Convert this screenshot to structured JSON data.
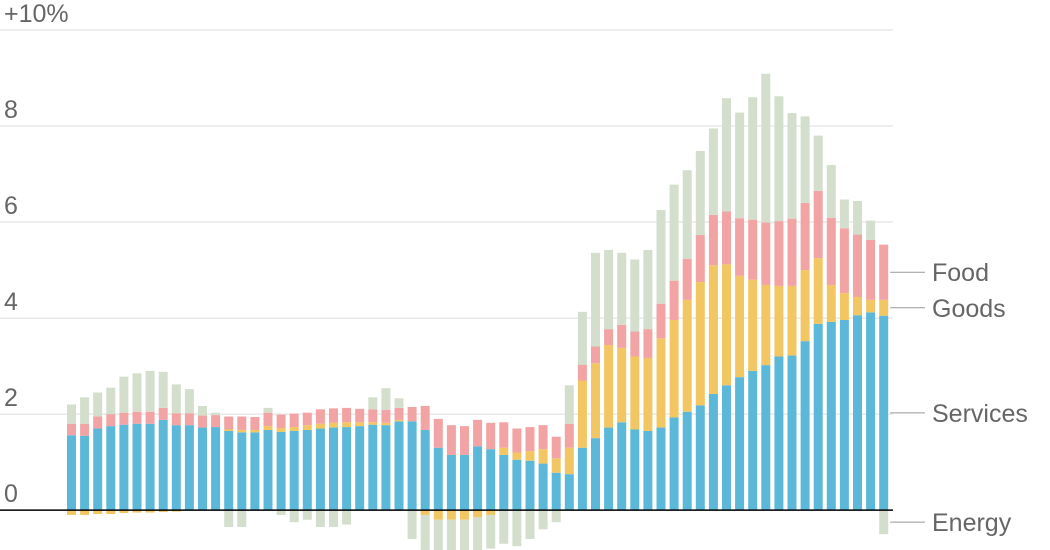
{
  "chart_data": {
    "type": "stacked_bar",
    "categories": [
      null,
      null,
      null,
      null,
      null,
      null,
      null,
      null,
      null,
      null,
      null,
      null,
      null,
      null,
      null,
      null,
      null,
      null,
      null,
      null,
      null,
      null,
      null,
      null,
      null,
      null,
      null,
      null,
      null,
      null,
      null,
      null,
      null,
      null,
      null,
      null,
      null,
      null,
      null,
      null,
      null,
      null,
      null,
      null,
      null,
      null,
      null,
      null,
      null,
      null,
      null,
      null,
      null,
      null,
      null,
      null,
      null,
      null,
      null,
      null,
      null,
      null,
      null
    ],
    "series": [
      {
        "name": "Services",
        "color": "#5bb8d9",
        "values": [
          1.56,
          1.55,
          1.7,
          1.75,
          1.78,
          1.8,
          1.8,
          1.88,
          1.77,
          1.77,
          1.72,
          1.73,
          1.65,
          1.62,
          1.62,
          1.67,
          1.63,
          1.65,
          1.67,
          1.7,
          1.72,
          1.73,
          1.75,
          1.78,
          1.77,
          1.85,
          1.85,
          1.67,
          1.3,
          1.15,
          1.15,
          1.33,
          1.27,
          1.15,
          1.05,
          1.03,
          0.97,
          0.78,
          0.75,
          1.3,
          1.5,
          1.72,
          1.83,
          1.68,
          1.65,
          1.72,
          1.93,
          2.05,
          2.18,
          2.42,
          2.6,
          2.77,
          2.9,
          3.02,
          3.2,
          3.22,
          3.52,
          3.88,
          3.92,
          3.96,
          4.06,
          4.12,
          4.05
        ]
      },
      {
        "name": "Goods",
        "color": "#f2c763",
        "values": [
          -0.1,
          -0.1,
          -0.08,
          -0.08,
          -0.06,
          -0.05,
          -0.05,
          -0.04,
          -0.03,
          0,
          0,
          0,
          0.03,
          0.05,
          0.05,
          0.08,
          0.08,
          0.08,
          0.1,
          0.1,
          0.1,
          0.1,
          0.08,
          0.05,
          0.05,
          0.03,
          0,
          -0.1,
          -0.2,
          -0.2,
          -0.2,
          -0.15,
          -0.1,
          0.15,
          0.15,
          0.2,
          0.3,
          0.3,
          0.55,
          1.4,
          1.56,
          1.72,
          1.55,
          1.52,
          1.52,
          1.86,
          2.03,
          2.33,
          2.57,
          2.68,
          2.52,
          2.11,
          1.9,
          1.67,
          1.47,
          1.45,
          1.48,
          1.37,
          0.77,
          0.56,
          0.38,
          0.26,
          0.33
        ]
      },
      {
        "name": "Food",
        "color": "#f2a3a3",
        "values": [
          0.24,
          0.25,
          0.25,
          0.25,
          0.25,
          0.25,
          0.25,
          0.25,
          0.25,
          0.25,
          0.25,
          0.25,
          0.27,
          0.28,
          0.27,
          0.28,
          0.28,
          0.28,
          0.26,
          0.3,
          0.3,
          0.3,
          0.28,
          0.27,
          0.27,
          0.25,
          0.3,
          0.5,
          0.6,
          0.62,
          0.6,
          0.55,
          0.55,
          0.53,
          0.5,
          0.5,
          0.5,
          0.45,
          0.5,
          0.33,
          0.35,
          0.33,
          0.48,
          0.52,
          0.6,
          0.72,
          0.82,
          0.85,
          0.98,
          1.05,
          1.1,
          1.2,
          1.25,
          1.3,
          1.35,
          1.4,
          1.4,
          1.4,
          1.4,
          1.35,
          1.3,
          1.25,
          1.15
        ]
      },
      {
        "name": "Energy",
        "color": "#d3dfcc",
        "values": [
          0.4,
          0.55,
          0.5,
          0.55,
          0.75,
          0.8,
          0.85,
          0.75,
          0.6,
          0.5,
          0.2,
          0.05,
          -0.35,
          -0.35,
          0,
          0.1,
          -0.1,
          -0.25,
          -0.2,
          -0.35,
          -0.35,
          -0.3,
          0,
          0.25,
          0.45,
          0.2,
          -0.6,
          -0.8,
          -0.85,
          -0.8,
          -0.75,
          -0.7,
          -0.7,
          -0.7,
          -0.75,
          -0.6,
          -0.4,
          -0.25,
          0.8,
          1.1,
          1.95,
          1.65,
          1.5,
          1.5,
          1.65,
          1.95,
          2.0,
          1.85,
          1.75,
          1.8,
          2.36,
          2.2,
          2.55,
          3.1,
          2.6,
          2.2,
          1.8,
          1.15,
          1.1,
          0.6,
          0.7,
          0.4,
          -0.5
        ]
      }
    ],
    "ylim": [
      -0.83,
      10
    ],
    "yticks": [
      0,
      2,
      4,
      6,
      8,
      {
        "value": 10,
        "label": "+10%"
      }
    ],
    "grid": true
  }
}
